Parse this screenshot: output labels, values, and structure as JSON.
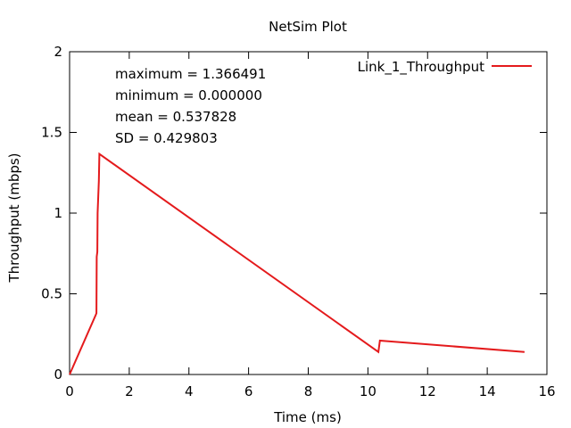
{
  "chart_data": {
    "type": "line",
    "title": "NetSim Plot",
    "xlabel": "Time (ms)",
    "ylabel": "Throughput (mbps)",
    "xlim": [
      0,
      16
    ],
    "ylim": [
      0,
      2
    ],
    "xticks": [
      0,
      2,
      4,
      6,
      8,
      10,
      12,
      14,
      16
    ],
    "yticks": [
      0,
      0.5,
      1,
      1.5,
      2
    ],
    "xtick_labels": [
      "0",
      "2",
      "4",
      "6",
      "8",
      "10",
      "12",
      "14",
      "16"
    ],
    "ytick_labels": [
      "0",
      "0.5",
      "1",
      "1.5",
      "2"
    ],
    "grid": false,
    "legend_position": "top-right",
    "annotations": [
      "maximum = 1.366491",
      "minimum = 0.000000",
      "mean = 0.537828",
      "SD = 0.429803"
    ],
    "series": [
      {
        "name": "Link_1_Throughput",
        "color": "#e41a1c",
        "x": [
          0,
          0.88,
          0.9,
          0.91,
          0.93,
          0.94,
          0.96,
          0.98,
          1.0,
          10.35,
          10.4,
          15.25
        ],
        "y": [
          0,
          0.37,
          0.38,
          0.73,
          0.76,
          1.0,
          1.1,
          1.2,
          1.366491,
          0.14,
          0.21,
          0.14
        ]
      }
    ]
  }
}
